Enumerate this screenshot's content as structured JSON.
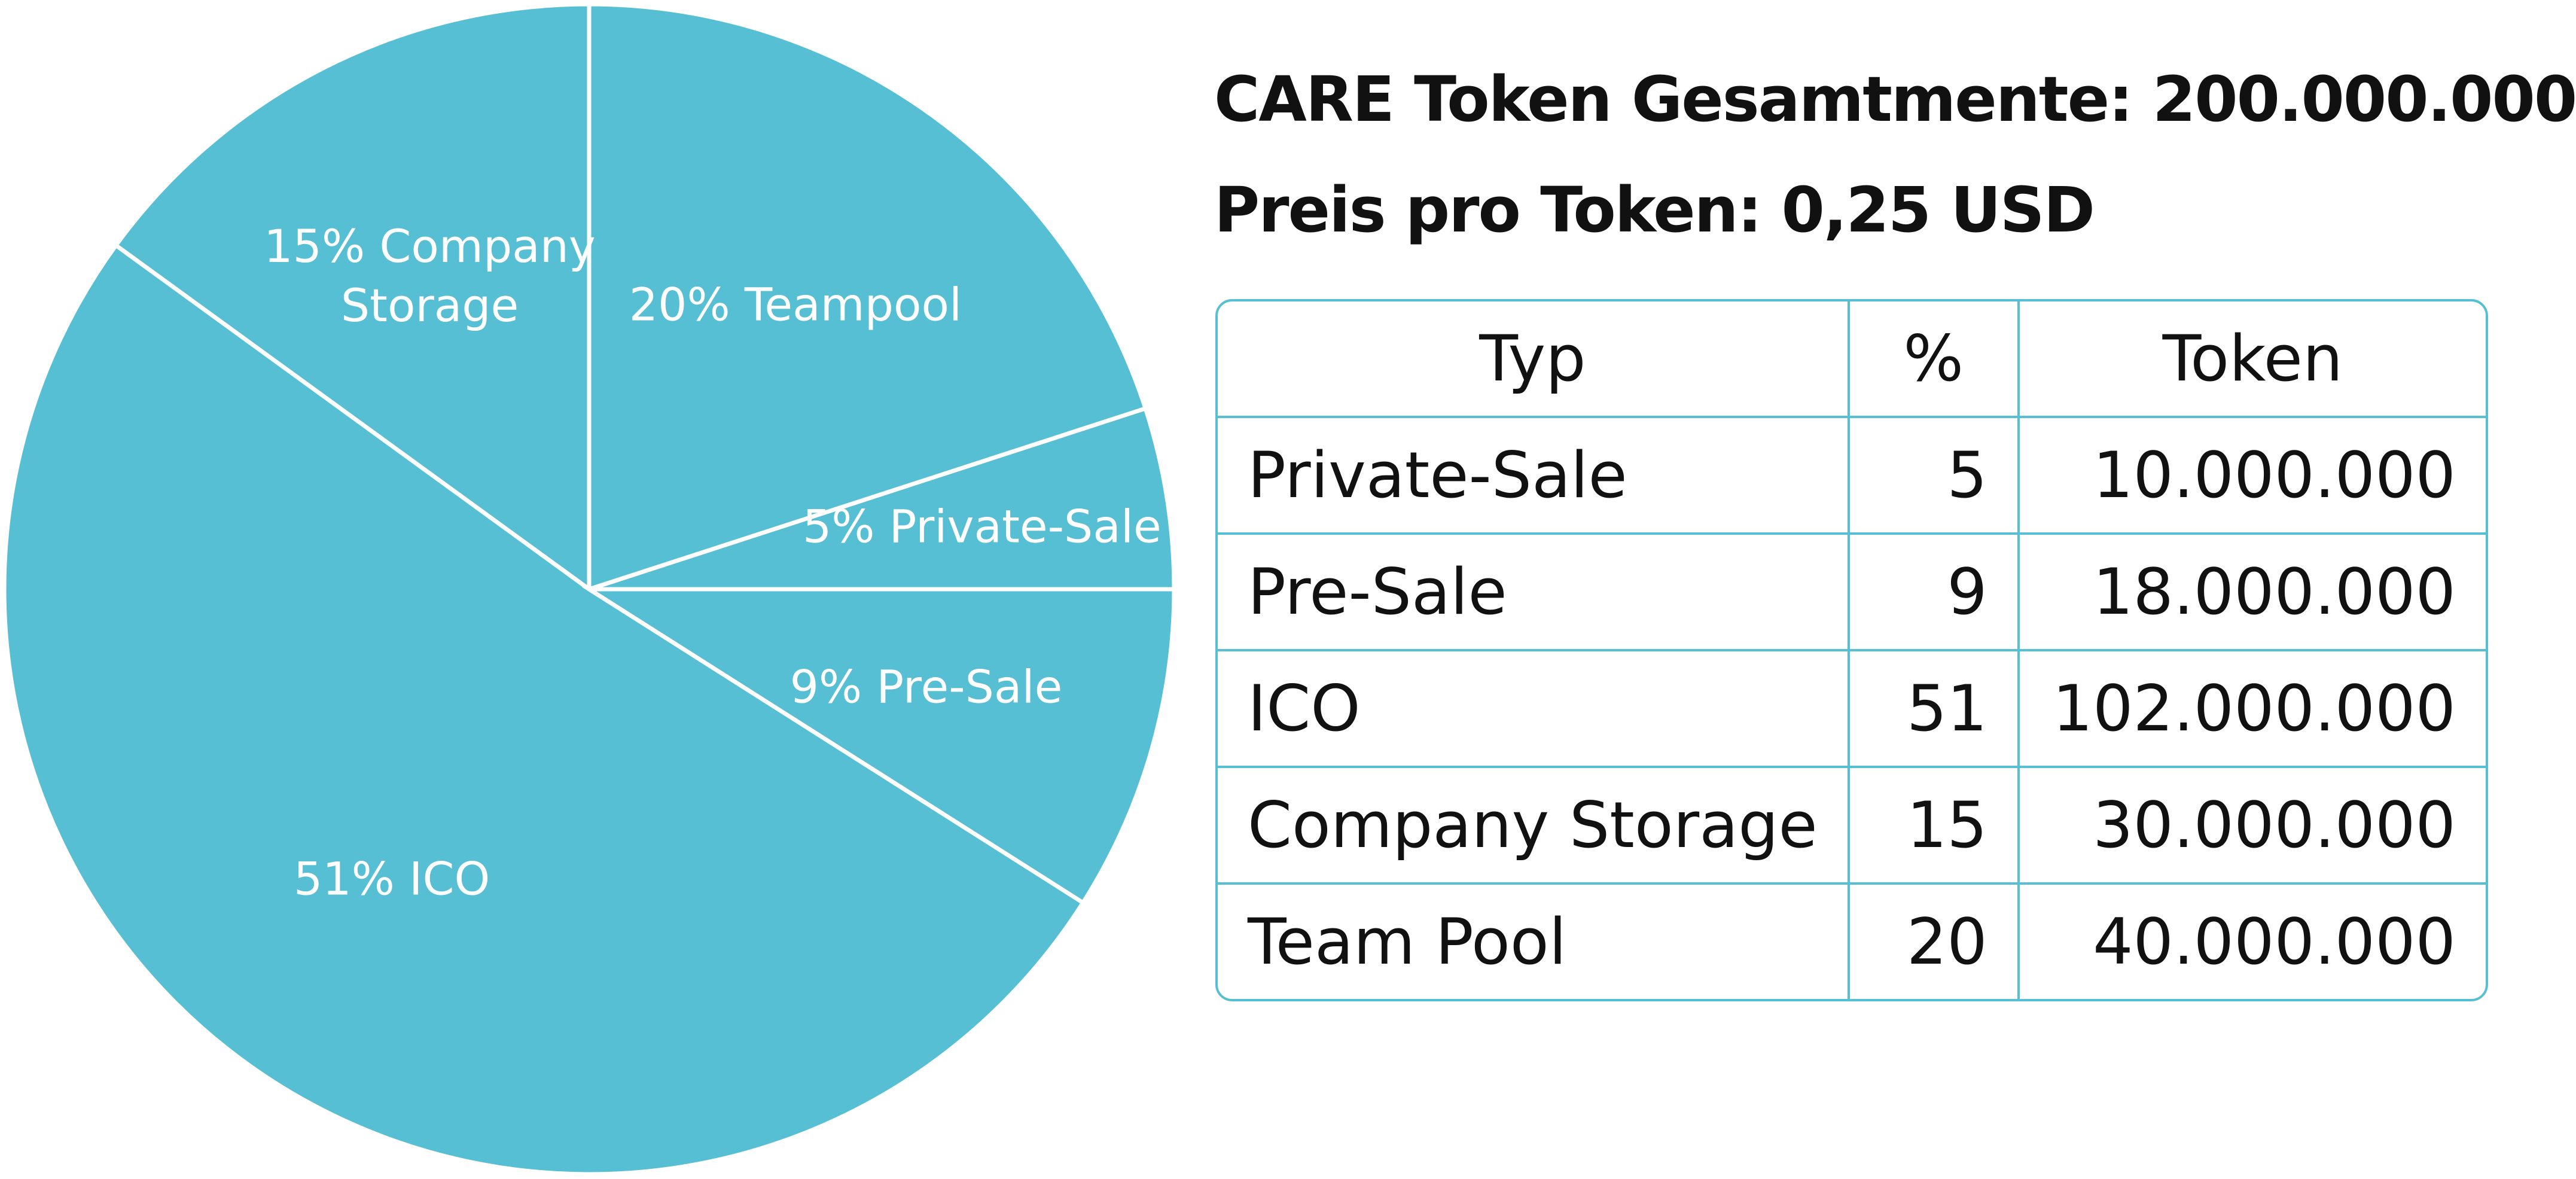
{
  "chart_data": {
    "type": "pie",
    "values": [
      5,
      20,
      15,
      51,
      9
    ],
    "value_labels": [
      "5% Private-Sale",
      "20% Teampool",
      "15% Company Storage",
      "51% ICO",
      "9% Pre-Sale"
    ],
    "color": "#56bfd4"
  },
  "info": {
    "total": "CARE Token Gesamtmente: 200.000.000",
    "price": "Preis pro Token: 0,25 USD"
  },
  "table": {
    "header": [
      "Typ",
      "%",
      "Token"
    ],
    "rows": [
      [
        "Private-Sale",
        "5",
        "10.000.000"
      ],
      [
        "Pre-Sale",
        "9",
        "18.000.000"
      ],
      [
        "ICO",
        "51",
        "102.000.000"
      ],
      [
        "Company Storage",
        "15",
        "30.000.000"
      ],
      [
        "Team Pool",
        "20",
        "40.000.000"
      ]
    ]
  }
}
